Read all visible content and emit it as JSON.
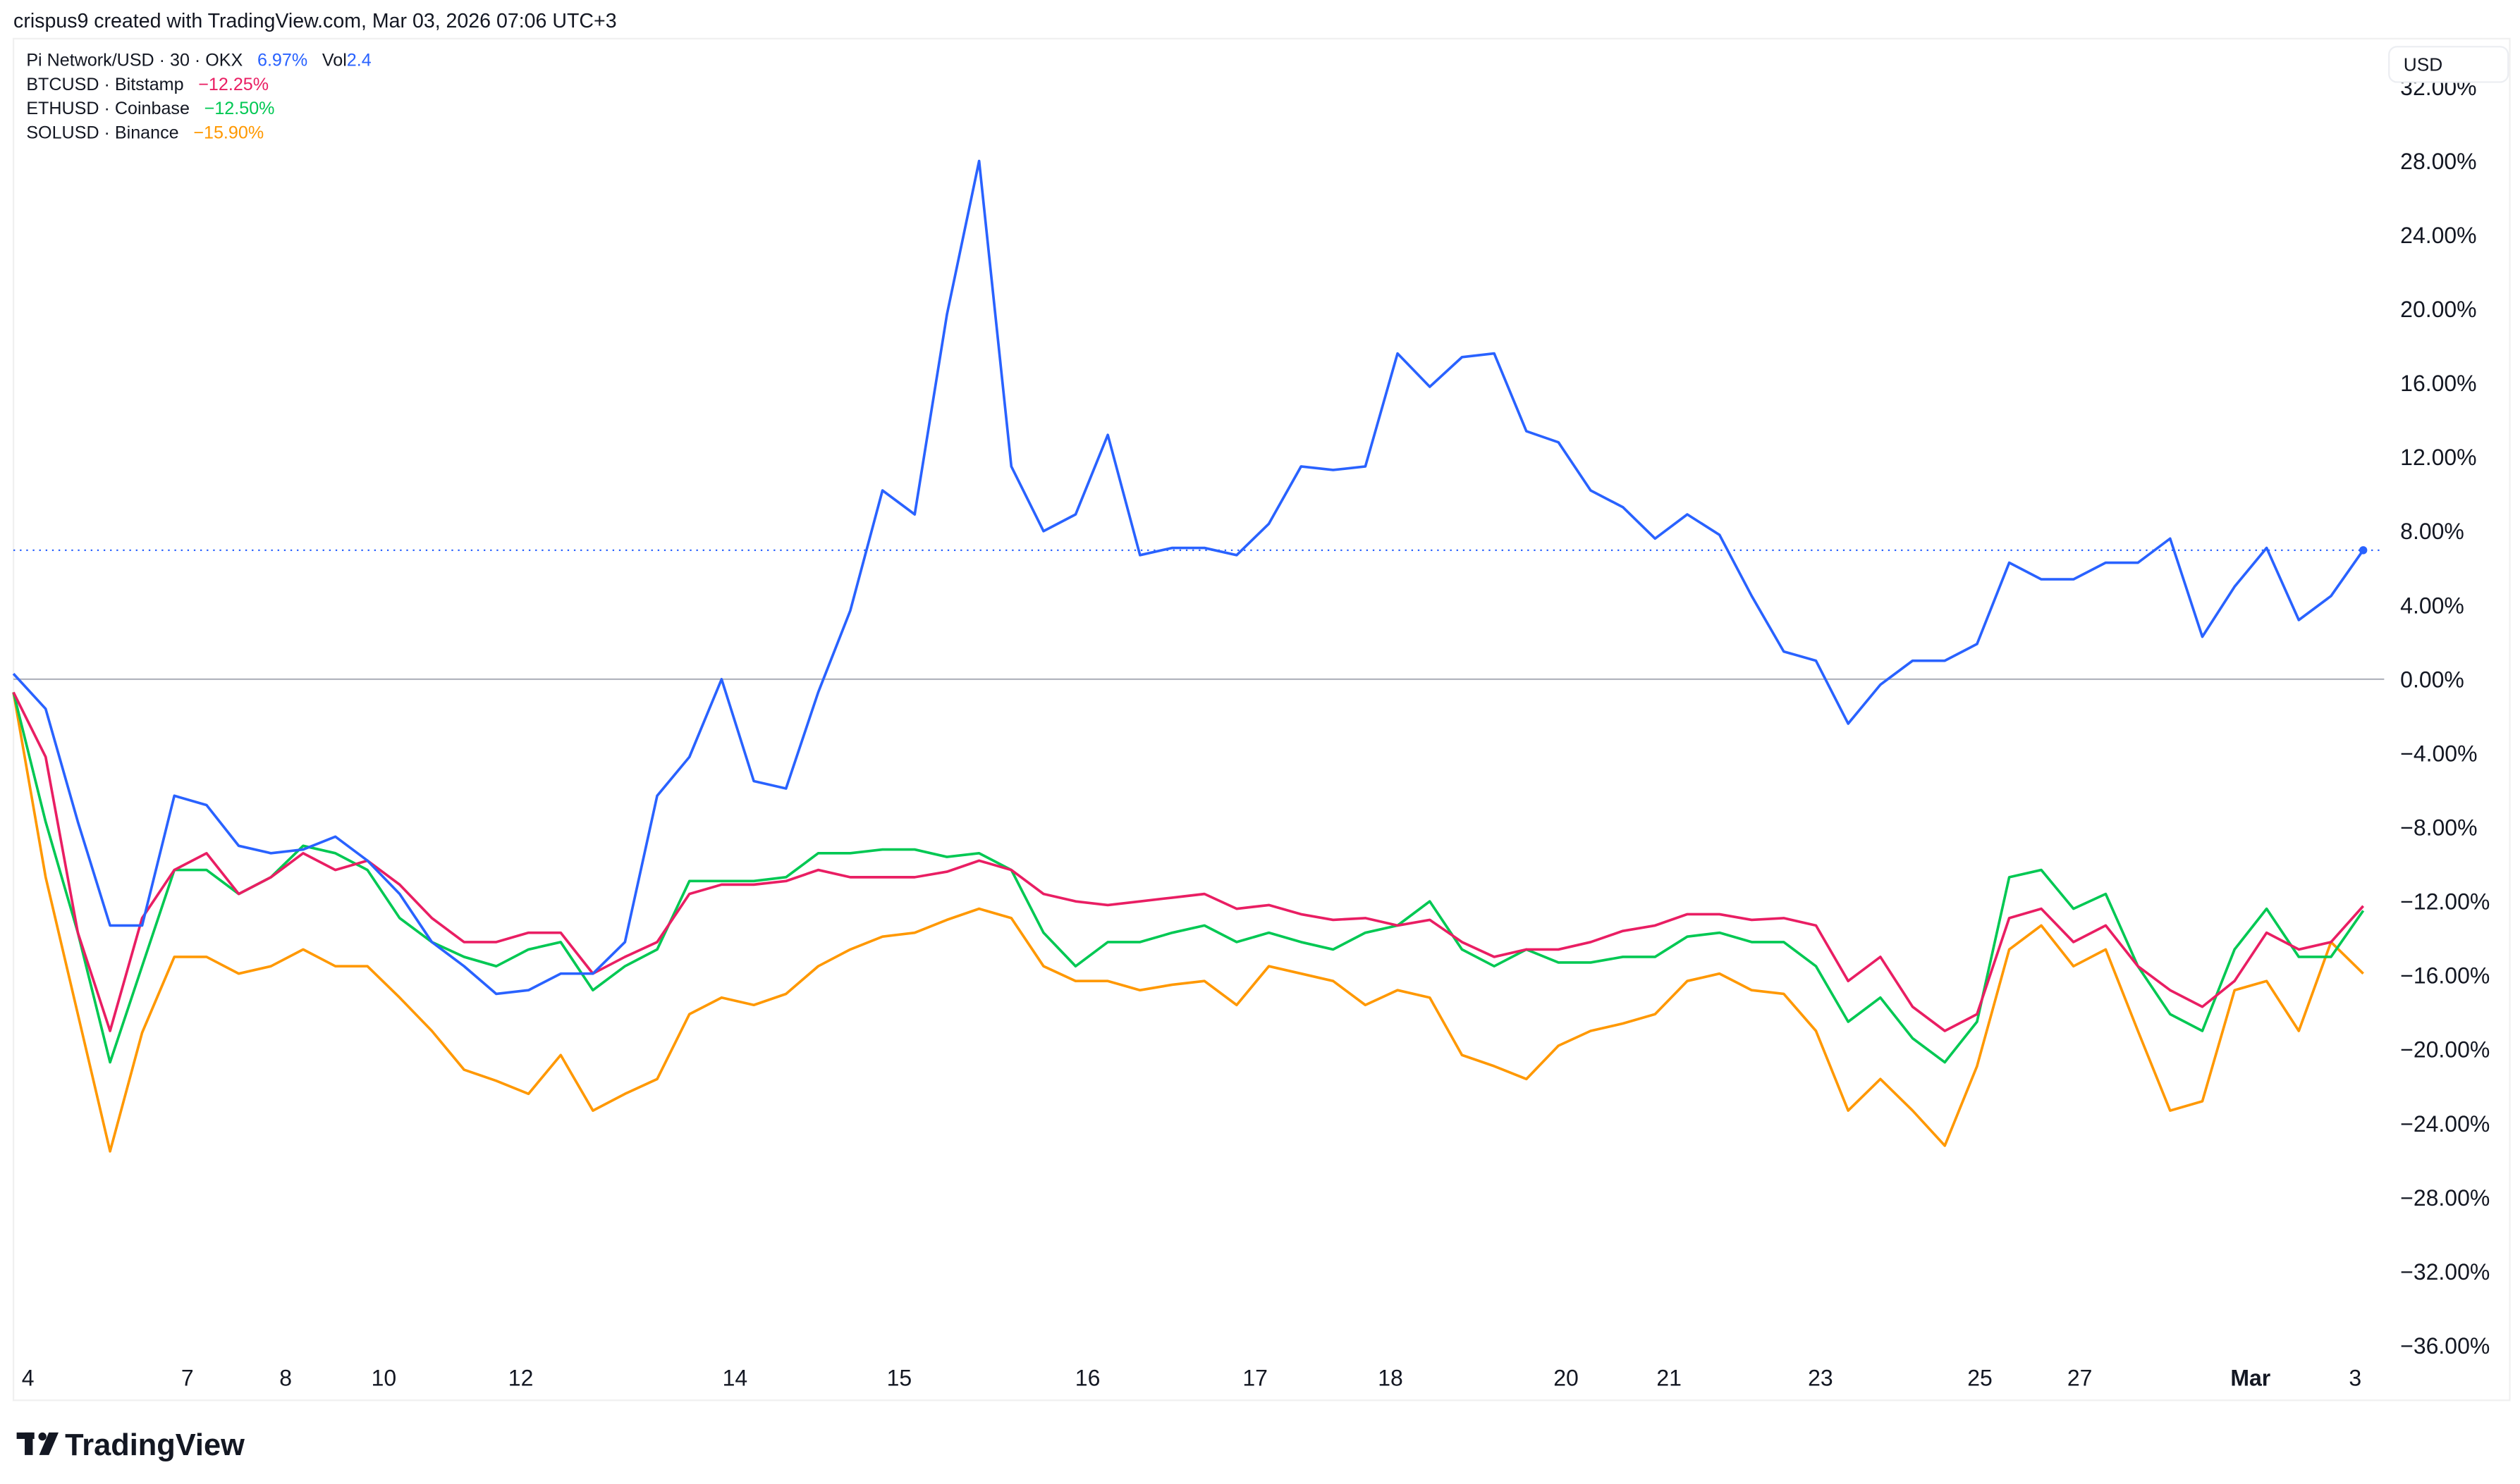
{
  "header": {
    "attribution": "crispus9 created with TradingView.com, Mar 03, 2026 07:06 UTC+3"
  },
  "legend": [
    {
      "label": "Pi Network/USD · 30 · OKX",
      "value": "6.97%",
      "extra_label": "Vol",
      "extra_value": "2.4",
      "color": "#2962ff"
    },
    {
      "label": "BTCUSD · Bitstamp",
      "value": "−12.25%",
      "color": "#e91e63"
    },
    {
      "label": "ETHUSD · Coinbase",
      "value": "−12.50%",
      "color": "#00c853"
    },
    {
      "label": "SOLUSD · Binance",
      "value": "−15.90%",
      "color": "#ff9800"
    }
  ],
  "currency_button": "USD",
  "footer": {
    "logo_text": "TradingView"
  },
  "chart_data": {
    "type": "line",
    "title": "",
    "xlabel": "",
    "ylabel": "",
    "ylim": [
      -36,
      32
    ],
    "y_ticks": [
      "32.00%",
      "28.00%",
      "24.00%",
      "20.00%",
      "16.00%",
      "12.00%",
      "8.00%",
      "4.00%",
      "0.00%",
      "−4.00%",
      "−8.00%",
      "−12.00%",
      "−16.00%",
      "−20.00%",
      "−24.00%",
      "−28.00%",
      "−32.00%",
      "−36.00%"
    ],
    "x_ticks": [
      "4",
      "7",
      "8",
      "10",
      "12",
      "14",
      "15",
      "16",
      "17",
      "18",
      "20",
      "21",
      "23",
      "25",
      "27",
      "Mar",
      "3"
    ],
    "last_value_line": 6.97,
    "series": [
      {
        "name": "Pi Network/USD",
        "color": "#2962ff",
        "values": [
          0.3,
          -1.6,
          -7.7,
          -13.3,
          -13.3,
          -6.3,
          -6.8,
          -9.0,
          -9.4,
          -9.2,
          -8.5,
          -9.8,
          -11.6,
          -14.2,
          -15.5,
          -17.0,
          -16.8,
          -15.9,
          -15.9,
          -14.2,
          -6.3,
          -4.2,
          0,
          -5.5,
          -5.9,
          -0.7,
          3.7,
          10.2,
          8.9,
          19.7,
          28,
          11.5,
          8.0,
          8.9,
          13.2,
          6.7,
          7.1,
          7.1,
          6.7,
          8.4,
          11.5,
          11.3,
          11.5,
          17.6,
          15.8,
          17.4,
          17.6,
          13.4,
          12.8,
          10.2,
          9.3,
          7.6,
          8.9,
          7.8,
          4.5,
          1.5,
          1.0,
          -2.4,
          -0.3,
          1.0,
          1.0,
          1.9,
          6.3,
          5.4,
          5.4,
          6.3,
          6.3,
          7.6,
          2.3,
          5.0,
          7.1,
          3.2,
          4.5,
          6.97
        ]
      },
      {
        "name": "BTCUSD",
        "color": "#e91e63",
        "values": [
          -0.7,
          -4.2,
          -13.7,
          -19.0,
          -12.9,
          -10.3,
          -9.4,
          -11.6,
          -10.7,
          -9.4,
          -10.3,
          -9.8,
          -11.1,
          -12.9,
          -14.2,
          -14.2,
          -13.7,
          -13.7,
          -15.9,
          -15.0,
          -14.2,
          -11.6,
          -11.1,
          -11.1,
          -10.9,
          -10.3,
          -10.7,
          -10.7,
          -10.7,
          -10.4,
          -9.8,
          -10.3,
          -11.6,
          -12.0,
          -12.2,
          -12.0,
          -11.8,
          -11.6,
          -12.4,
          -12.2,
          -12.7,
          -13.0,
          -12.9,
          -13.3,
          -13.0,
          -14.2,
          -15.0,
          -14.6,
          -14.6,
          -14.2,
          -13.6,
          -13.3,
          -12.7,
          -12.7,
          -13.0,
          -12.9,
          -13.3,
          -16.3,
          -15.0,
          -17.7,
          -19.0,
          -18.1,
          -12.9,
          -12.4,
          -14.2,
          -13.3,
          -15.5,
          -16.8,
          -17.7,
          -16.3,
          -13.7,
          -14.6,
          -14.2,
          -12.25
        ]
      },
      {
        "name": "ETHUSD",
        "color": "#00c853",
        "values": [
          -0.7,
          -7.7,
          -13.7,
          -20.7,
          -15.5,
          -10.3,
          -10.3,
          -11.6,
          -10.7,
          -9.0,
          -9.4,
          -10.3,
          -12.9,
          -14.2,
          -15.0,
          -15.5,
          -14.6,
          -14.2,
          -16.8,
          -15.5,
          -14.6,
          -10.9,
          -10.9,
          -10.9,
          -10.7,
          -9.4,
          -9.4,
          -9.2,
          -9.2,
          -9.6,
          -9.4,
          -10.3,
          -13.7,
          -15.5,
          -14.2,
          -14.2,
          -13.7,
          -13.3,
          -14.2,
          -13.7,
          -14.2,
          -14.6,
          -13.7,
          -13.3,
          -12.0,
          -14.6,
          -15.5,
          -14.6,
          -15.3,
          -15.3,
          -15.0,
          -15.0,
          -13.9,
          -13.7,
          -14.2,
          -14.2,
          -15.5,
          -18.5,
          -17.2,
          -19.4,
          -20.7,
          -18.5,
          -10.7,
          -10.3,
          -12.4,
          -11.6,
          -15.5,
          -18.1,
          -19.0,
          -14.6,
          -12.4,
          -15.0,
          -15.0,
          -12.5
        ]
      },
      {
        "name": "SOLUSD",
        "color": "#ff9800",
        "values": [
          -0.7,
          -10.7,
          -18.1,
          -25.5,
          -19.1,
          -15.0,
          -15.0,
          -15.9,
          -15.5,
          -14.6,
          -15.5,
          -15.5,
          -17.2,
          -19.0,
          -21.1,
          -21.7,
          -22.4,
          -20.3,
          -23.3,
          -22.4,
          -21.6,
          -18.1,
          -17.2,
          -17.6,
          -17.0,
          -15.5,
          -14.6,
          -13.9,
          -13.7,
          -13.0,
          -12.4,
          -12.9,
          -15.5,
          -16.3,
          -16.3,
          -16.8,
          -16.5,
          -16.3,
          -17.6,
          -15.5,
          -15.9,
          -16.3,
          -17.6,
          -16.8,
          -17.2,
          -20.3,
          -20.9,
          -21.6,
          -19.8,
          -19.0,
          -18.6,
          -18.1,
          -16.3,
          -15.9,
          -16.8,
          -17.0,
          -19.0,
          -23.3,
          -21.6,
          -23.3,
          -25.2,
          -20.9,
          -14.6,
          -13.3,
          -15.5,
          -14.6,
          -19.0,
          -23.3,
          -22.8,
          -16.8,
          -16.3,
          -19.0,
          -14.2,
          -15.9
        ]
      }
    ]
  }
}
